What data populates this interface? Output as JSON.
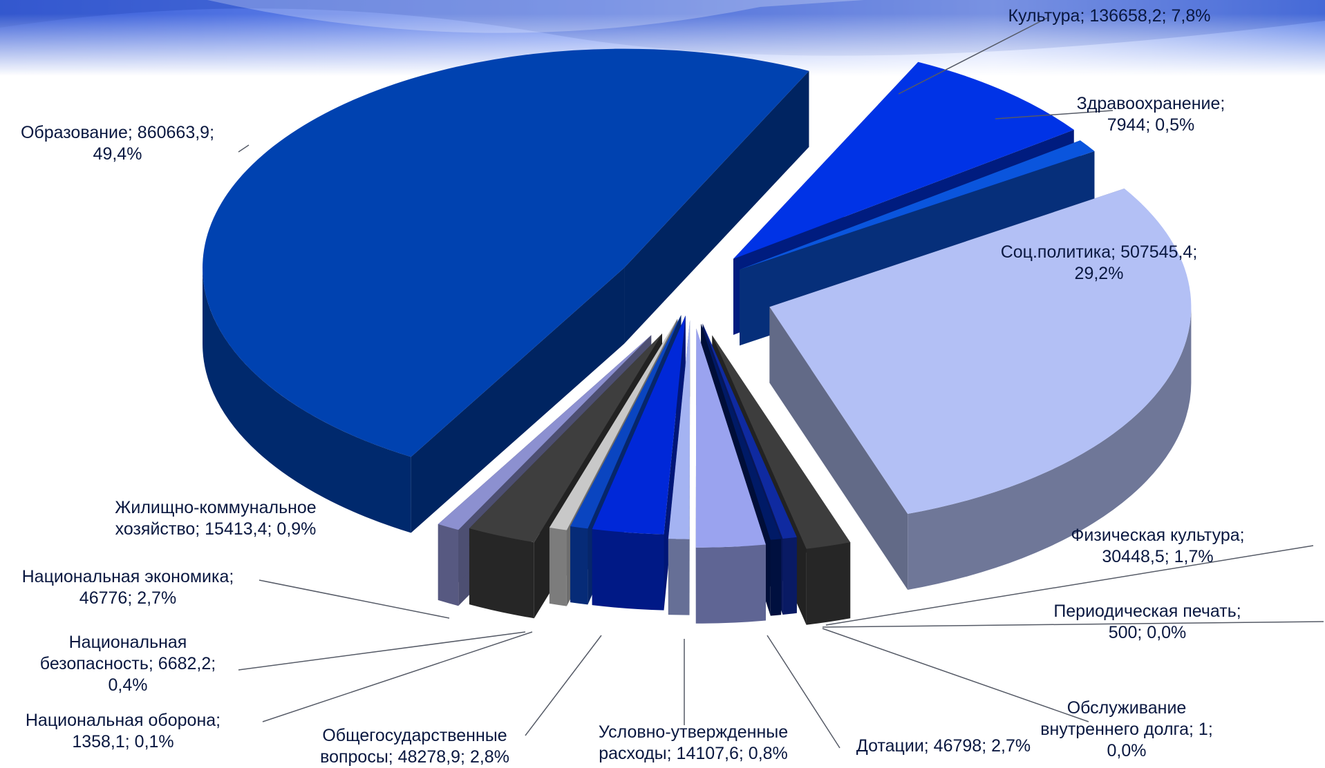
{
  "chart_data": {
    "type": "pie",
    "variant": "3d-exploded",
    "legend": "none",
    "slices": [
      {
        "name": "Культура",
        "value": 136658.2,
        "percent": "7,8%",
        "color": "#0033e6",
        "label": [
          "Культура; 136658,2; 7,8%"
        ]
      },
      {
        "name": "Здравоохранение",
        "value": 7944,
        "percent": "0,5%",
        "color": "#0a55dd",
        "label": [
          "Здравоохранение;",
          "7944; 0,5%"
        ]
      },
      {
        "name": "Соц.политика",
        "value": 507545.4,
        "percent": "29,2%",
        "color": "#b3c0f5",
        "label": [
          "Соц.политика; 507545,4;",
          "29,2%"
        ]
      },
      {
        "name": "Физическая культура",
        "value": 30448.5,
        "percent": "1,7%",
        "color": "#3d3d3d",
        "label": [
          "Физическая культура;",
          "30448,5; 1,7%"
        ]
      },
      {
        "name": "Периодическая печать",
        "value": 500,
        "percent": "0,0%",
        "color": "#0f2aa0",
        "label": [
          "Периодическая печать;",
          "500; 0,0%"
        ]
      },
      {
        "name": "Обслуживание внутреннего долга",
        "value": 1,
        "percent": "0,0%",
        "color": "#001a66",
        "label": [
          "Обслуживание",
          "внутреннего долга; 1;",
          "0,0%"
        ]
      },
      {
        "name": "Дотации",
        "value": 46798,
        "percent": "2,7%",
        "color": "#9aa3ef",
        "label": [
          "Дотации; 46798; 2,7%"
        ]
      },
      {
        "name": "Условно-утвержденные расходы",
        "value": 14107.6,
        "percent": "0,8%",
        "color": "#a4b3f2",
        "label": [
          "Условно-утвержденные",
          "расходы; 14107,6; 0,8%"
        ]
      },
      {
        "name": "Общегосударственные вопросы",
        "value": 48278.9,
        "percent": "2,8%",
        "color": "#0028d8",
        "label": [
          "Общегосударственные",
          "вопросы; 48278,9; 2,8%"
        ]
      },
      {
        "name": "Национальная оборона",
        "value": 1358.1,
        "percent": "0,1%",
        "color": "#0a45c0",
        "label": [
          "Национальная оборона;",
          "1358,1; 0,1%"
        ]
      },
      {
        "name": "Национальная безопасность",
        "value": 6682.2,
        "percent": "0,4%",
        "color": "#c8c8c8",
        "label": [
          "Национальная",
          "безопасность; 6682,2;",
          "0,4%"
        ]
      },
      {
        "name": "Национальная экономика",
        "value": 46776,
        "percent": "2,7%",
        "color": "#3e3e3e",
        "label": [
          "Национальная экономика;",
          "46776; 2,7%"
        ]
      },
      {
        "name": "Жилищно-коммунальное хозяйство",
        "value": 15413.4,
        "percent": "0,9%",
        "color": "#8c90d0",
        "label": [
          "Жилищно-коммунальное",
          "хозяйство; 15413,4; 0,9%"
        ]
      },
      {
        "name": "Образование",
        "value": 860663.9,
        "percent": "49,4%",
        "color": "#0042b0",
        "label": [
          "Образование; 860663,9;",
          "49,4%"
        ]
      }
    ]
  }
}
